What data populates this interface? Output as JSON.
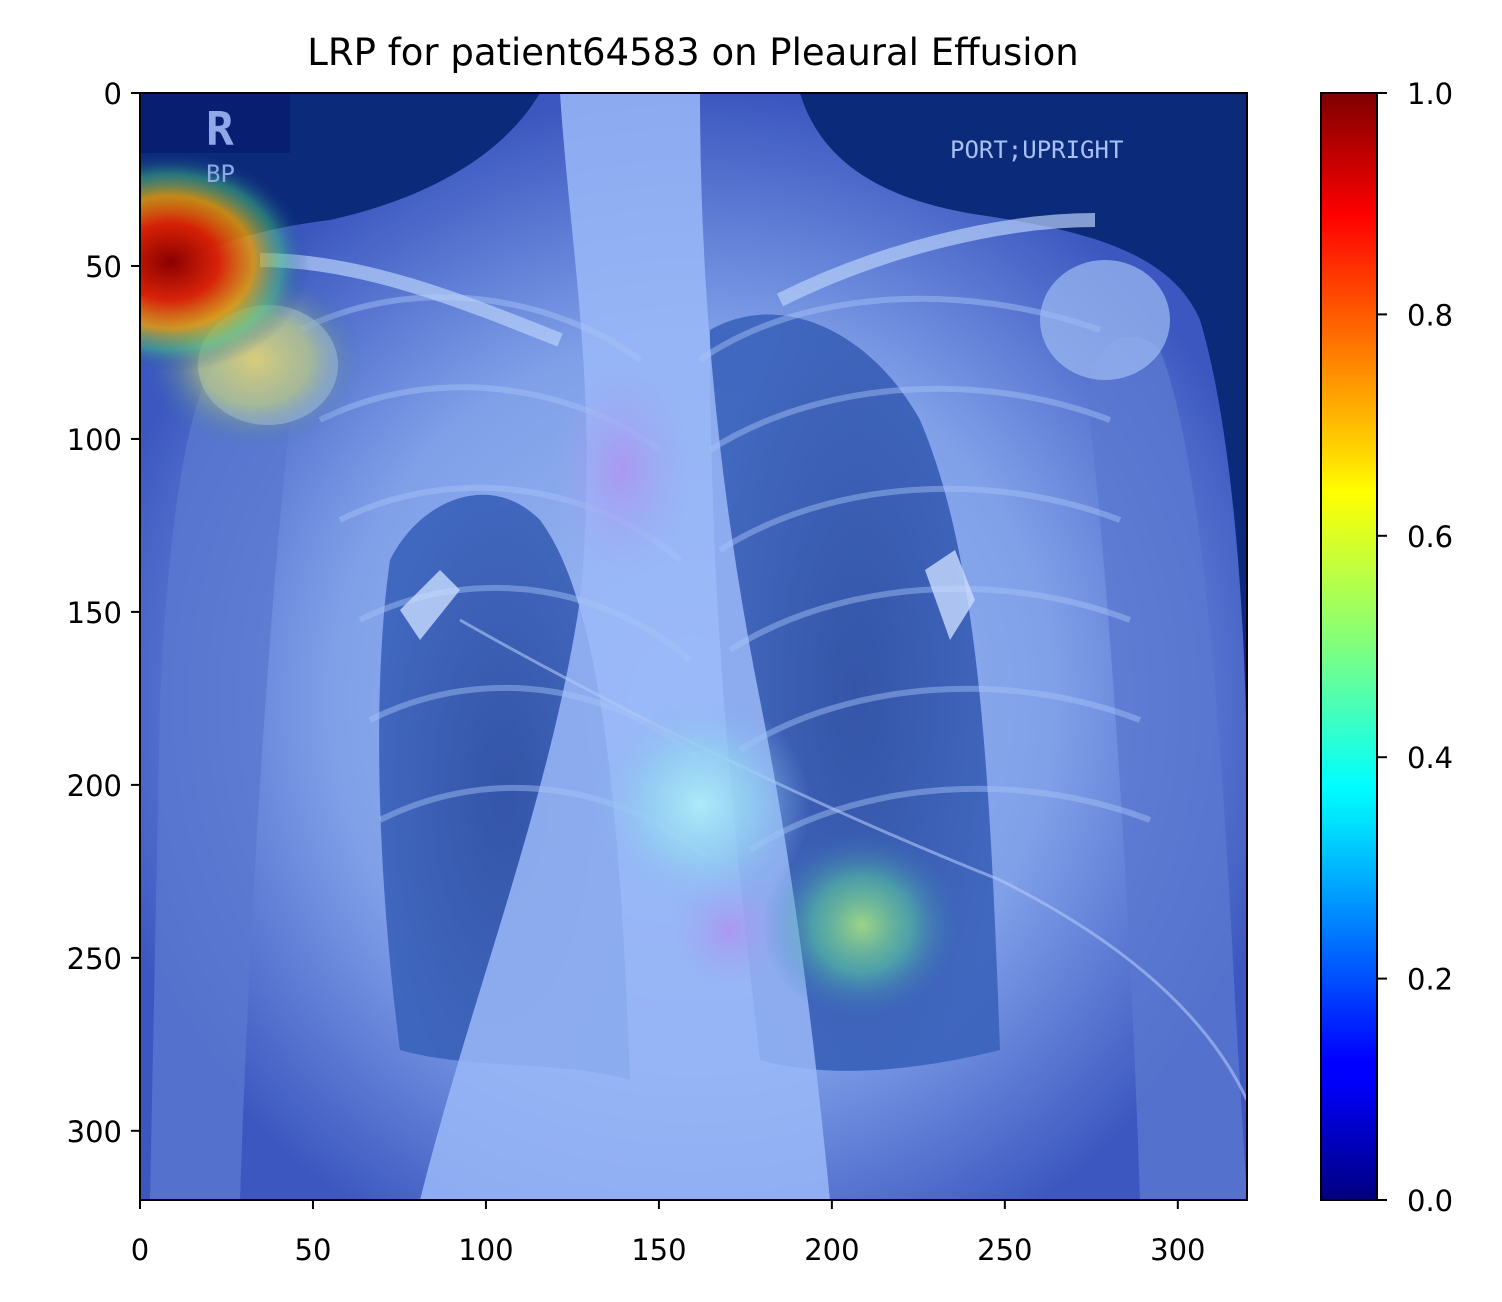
{
  "chart_data": {
    "type": "heatmap",
    "title": "LRP for patient64583 on Pleaural Effusion",
    "xlabel": "",
    "ylabel": "",
    "xlim": [
      0,
      320
    ],
    "ylim": [
      320,
      0
    ],
    "x_ticks": [
      0,
      50,
      100,
      150,
      200,
      250,
      300
    ],
    "y_ticks": [
      0,
      50,
      100,
      150,
      200,
      250,
      300
    ],
    "colormap": "jet",
    "colorbar": {
      "range": [
        0.0,
        1.0
      ],
      "ticks": [
        "0.0",
        "0.2",
        "0.4",
        "0.6",
        "0.8",
        "1.0"
      ],
      "tick_values": [
        0.0,
        0.2,
        0.4,
        0.6,
        0.8,
        1.0
      ]
    },
    "image_text": [
      "R",
      "BP",
      "PORT;UPRIGHT"
    ],
    "relevance_hotspots": [
      {
        "x": 8,
        "y": 48,
        "value": 1.0
      },
      {
        "x": 30,
        "y": 78,
        "value": 0.75
      },
      {
        "x": 208,
        "y": 240,
        "value": 0.5
      },
      {
        "x": 168,
        "y": 206,
        "value": 0.4
      },
      {
        "x": 140,
        "y": 110,
        "value": 0.22
      }
    ],
    "grid": false,
    "legend": "none"
  }
}
